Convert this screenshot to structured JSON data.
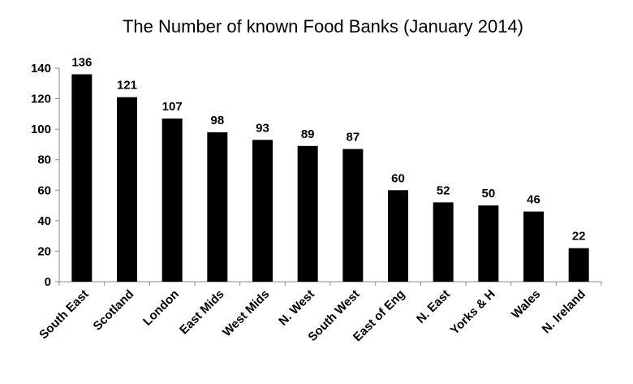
{
  "chart_data": {
    "type": "bar",
    "title": "The Number of known Food Banks (January 2014)",
    "categories": [
      "South East",
      "Scotland",
      "London",
      "East Mids",
      "West Mids",
      "N. West",
      "South West",
      "East of Eng",
      "N. East",
      "Yorks & H",
      "Wales",
      "N. Ireland"
    ],
    "values": [
      136,
      121,
      107,
      98,
      93,
      89,
      87,
      60,
      52,
      50,
      46,
      22
    ],
    "yticks": [
      "0",
      "20",
      "40",
      "60",
      "80",
      "100",
      "120",
      "140"
    ],
    "ylim": [
      0,
      140
    ],
    "xlabel": "",
    "ylabel": "",
    "grid": false,
    "legend": "none",
    "bar_color": "#000000"
  }
}
